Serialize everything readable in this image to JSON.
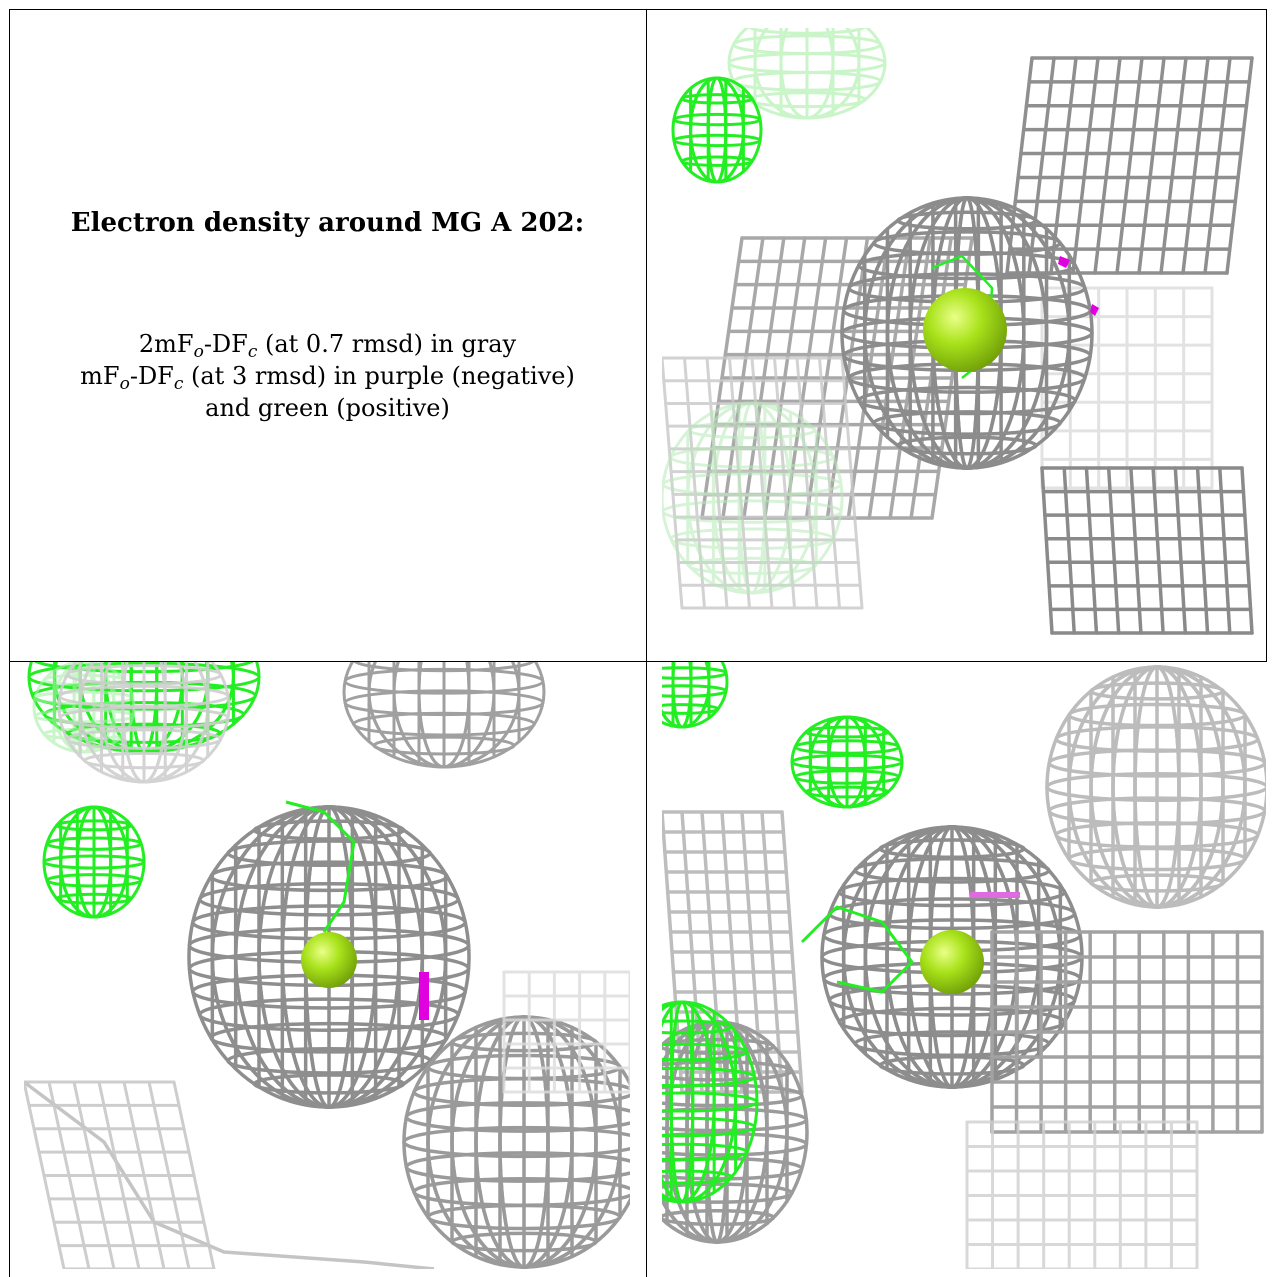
{
  "caption": {
    "title": "Electron density around MG A 202:",
    "line1_prefix": "2mF",
    "line1_sub1": "o",
    "line1_mid": "-DF",
    "line1_sub2": "c",
    "line1_suffix": " (at 0.7 rmsd) in gray",
    "line2_prefix": "mF",
    "line2_sub1": "o",
    "line2_mid": "-DF",
    "line2_sub2": "c",
    "line2_suffix": " (at 3 rmsd) in purple (negative)",
    "line3": "and green (positive)"
  },
  "colors": {
    "gray_mesh": "#8f8f8f",
    "light_gray_mesh": "#c8c8c8",
    "green_mesh": "#22ee22",
    "purple_mesh": "#e000e0",
    "mg_ion": "#99dd11"
  },
  "panels": [
    {
      "name": "top-right-view"
    },
    {
      "name": "bottom-left-view"
    },
    {
      "name": "bottom-right-view"
    }
  ]
}
